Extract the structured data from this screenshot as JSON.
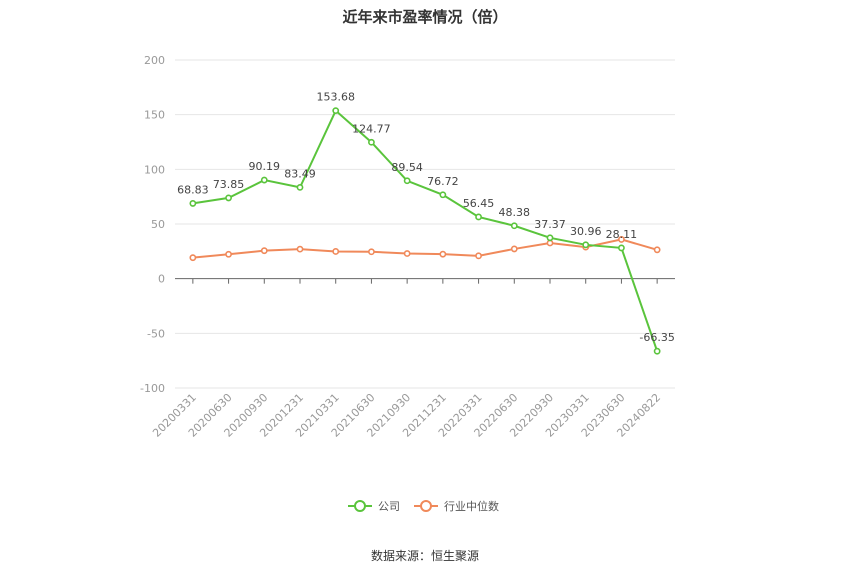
{
  "chart_data": {
    "type": "line",
    "title": "近年来市盈率情况（倍）",
    "categories": [
      "20200331",
      "20200630",
      "20200930",
      "20201231",
      "20210331",
      "20210630",
      "20210930",
      "20211231",
      "20220331",
      "20220630",
      "20220930",
      "20230331",
      "20230630",
      "20240822"
    ],
    "series": [
      {
        "name": "公司",
        "color": "#5ac43c",
        "values": [
          68.83,
          73.85,
          90.19,
          83.49,
          153.68,
          124.77,
          89.54,
          76.72,
          56.45,
          48.38,
          37.37,
          30.96,
          28.11,
          -66.35
        ],
        "labels": [
          "68.83",
          "73.85",
          "90.19",
          "83.49",
          "153.68",
          "124.77",
          "89.54",
          "76.72",
          "56.45",
          "48.38",
          "37.37",
          "30.96",
          "28.11",
          "-66.35"
        ]
      },
      {
        "name": "行业中位数",
        "color": "#f0895a",
        "values": [
          19.2,
          22.3,
          25.6,
          27.0,
          24.9,
          24.6,
          23.0,
          22.4,
          20.9,
          27.2,
          32.6,
          28.9,
          35.9,
          26.4
        ]
      }
    ],
    "ylim": [
      -100,
      200
    ],
    "yticks": [
      "200",
      "150",
      "100",
      "50",
      "0",
      "-50",
      "-100"
    ],
    "ytick_values": [
      200,
      150,
      100,
      50,
      0,
      -50,
      -100
    ],
    "grid": true,
    "legend_position": "bottom-center"
  },
  "source": "数据来源：恒生聚源"
}
